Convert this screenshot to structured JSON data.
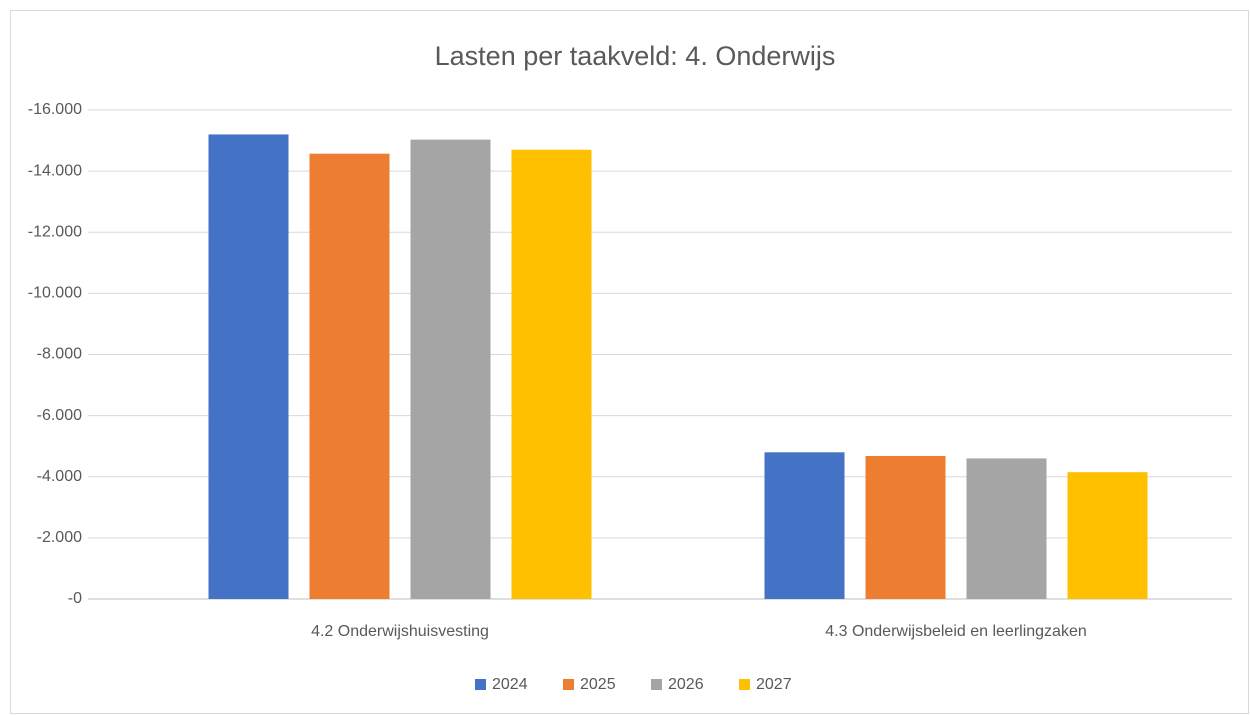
{
  "chart_data": {
    "type": "bar",
    "title": "Lasten per taakveld: 4. Onderwijs",
    "categories": [
      "4.2 Onderwijshuisvesting",
      "4.3 Onderwijsbeleid en leerlingzaken"
    ],
    "series": [
      {
        "name": "2024",
        "color": "#4472c4",
        "values": [
          -15200,
          -4800
        ]
      },
      {
        "name": "2025",
        "color": "#ed7d31",
        "values": [
          -14570,
          -4680
        ]
      },
      {
        "name": "2026",
        "color": "#a5a5a5",
        "values": [
          -15030,
          -4600
        ]
      },
      {
        "name": "2027",
        "color": "#ffc000",
        "values": [
          -14700,
          -4150
        ]
      }
    ],
    "ylim": [
      0,
      -16000
    ],
    "yticks": [
      {
        "value": 0,
        "label": "-0"
      },
      {
        "value": -2000,
        "label": "-2.000"
      },
      {
        "value": -4000,
        "label": "-4.000"
      },
      {
        "value": -6000,
        "label": "-6.000"
      },
      {
        "value": -8000,
        "label": "-8.000"
      },
      {
        "value": -10000,
        "label": "-10.000"
      },
      {
        "value": -12000,
        "label": "-12.000"
      },
      {
        "value": -14000,
        "label": "-14.000"
      },
      {
        "value": -16000,
        "label": "-16.000"
      }
    ],
    "grid": true,
    "legend": "bottom"
  }
}
